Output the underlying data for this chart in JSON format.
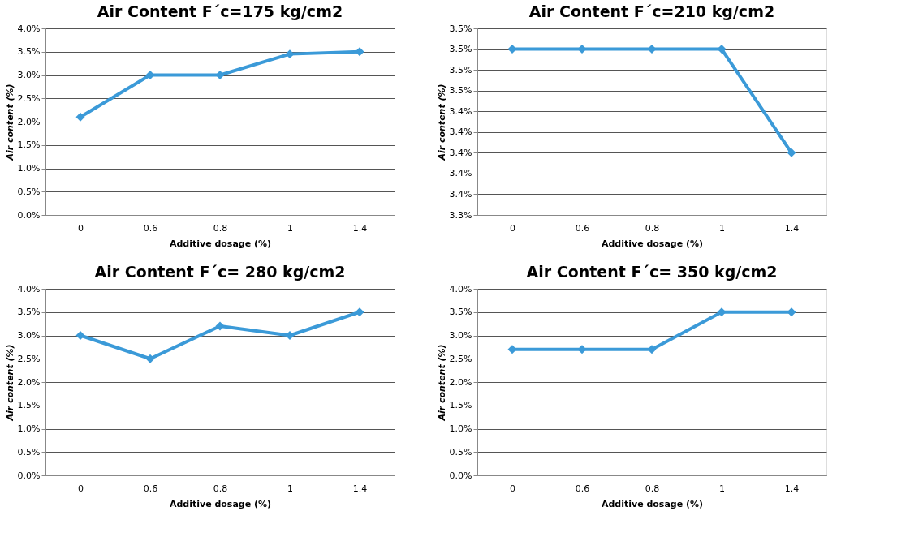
{
  "chart_data": [
    {
      "type": "line",
      "title": "Air Content F´c=175 kg/cm2",
      "xlabel": "Additive dosage (%)",
      "ylabel": "Air content (%)",
      "categories": [
        "0",
        "0.6",
        "0.8",
        "1",
        "1.4"
      ],
      "series": [
        {
          "color": "#3b9ad8",
          "values": [
            2.1,
            3.0,
            3.0,
            3.45,
            3.5
          ]
        }
      ],
      "ylim": [
        0,
        4
      ],
      "yticks": [
        {
          "value": 0,
          "label": "0.0%"
        },
        {
          "value": 0.5,
          "label": "0.5%"
        },
        {
          "value": 1,
          "label": "1.0%"
        },
        {
          "value": 1.5,
          "label": "1.5%"
        },
        {
          "value": 2,
          "label": "2.0%"
        },
        {
          "value": 2.5,
          "label": "2.5%"
        },
        {
          "value": 3,
          "label": "3.0%"
        },
        {
          "value": 3.5,
          "label": "3.5%"
        },
        {
          "value": 4,
          "label": "4.0%"
        }
      ],
      "grid": "y",
      "marker": "diamond",
      "line_style": "solid"
    },
    {
      "type": "line",
      "title": "Air Content F´c=210 kg/cm2",
      "xlabel": "Additive dosage (%)",
      "ylabel": "Air content (%)",
      "categories": [
        "0",
        "0.6",
        "0.8",
        "1",
        "1.4"
      ],
      "series": [
        {
          "color": "#3b9ad8",
          "values": [
            3.5,
            3.5,
            3.5,
            3.5,
            3.4
          ]
        }
      ],
      "ylim": [
        3.34,
        3.52
      ],
      "yticks": [
        {
          "value": 3.34,
          "label": "3.3%"
        },
        {
          "value": 3.36,
          "label": "3.4%"
        },
        {
          "value": 3.38,
          "label": "3.4%"
        },
        {
          "value": 3.4,
          "label": "3.4%"
        },
        {
          "value": 3.42,
          "label": "3.4%"
        },
        {
          "value": 3.44,
          "label": "3.4%"
        },
        {
          "value": 3.46,
          "label": "3.5%"
        },
        {
          "value": 3.48,
          "label": "3.5%"
        },
        {
          "value": 3.5,
          "label": "3.5%"
        },
        {
          "value": 3.52,
          "label": "3.5%"
        }
      ],
      "grid": "y",
      "marker": "diamond",
      "line_style": "solid"
    },
    {
      "type": "line",
      "title": "Air Content F´c= 280 kg/cm2",
      "xlabel": "Additive dosage (%)",
      "ylabel": "Air content (%)",
      "categories": [
        "0",
        "0.6",
        "0.8",
        "1",
        "1.4"
      ],
      "series": [
        {
          "color": "#3b9ad8",
          "values": [
            3.0,
            2.5,
            3.2,
            3.0,
            3.5
          ]
        }
      ],
      "ylim": [
        0,
        4
      ],
      "yticks": [
        {
          "value": 0,
          "label": "0.0%"
        },
        {
          "value": 0.5,
          "label": "0.5%"
        },
        {
          "value": 1,
          "label": "1.0%"
        },
        {
          "value": 1.5,
          "label": "1.5%"
        },
        {
          "value": 2,
          "label": "2.0%"
        },
        {
          "value": 2.5,
          "label": "2.5%"
        },
        {
          "value": 3,
          "label": "3.0%"
        },
        {
          "value": 3.5,
          "label": "3.5%"
        },
        {
          "value": 4,
          "label": "4.0%"
        }
      ],
      "grid": "y",
      "marker": "diamond",
      "line_style": "solid"
    },
    {
      "type": "line",
      "title": "Air Content F´c= 350 kg/cm2",
      "xlabel": "Additive dosage (%)",
      "ylabel": "Air content (%)",
      "categories": [
        "0",
        "0.6",
        "0.8",
        "1",
        "1.4"
      ],
      "series": [
        {
          "color": "#3b9ad8",
          "values": [
            2.7,
            2.7,
            2.7,
            3.5,
            3.5
          ]
        }
      ],
      "ylim": [
        0,
        4
      ],
      "yticks": [
        {
          "value": 0,
          "label": "0.0%"
        },
        {
          "value": 0.5,
          "label": "0.5%"
        },
        {
          "value": 1,
          "label": "1.0%"
        },
        {
          "value": 1.5,
          "label": "1.5%"
        },
        {
          "value": 2,
          "label": "2.0%"
        },
        {
          "value": 2.5,
          "label": "2.5%"
        },
        {
          "value": 3,
          "label": "3.0%"
        },
        {
          "value": 3.5,
          "label": "3.5%"
        },
        {
          "value": 4,
          "label": "4.0%"
        }
      ],
      "grid": "y",
      "marker": "diamond",
      "line_style": "solid"
    }
  ]
}
